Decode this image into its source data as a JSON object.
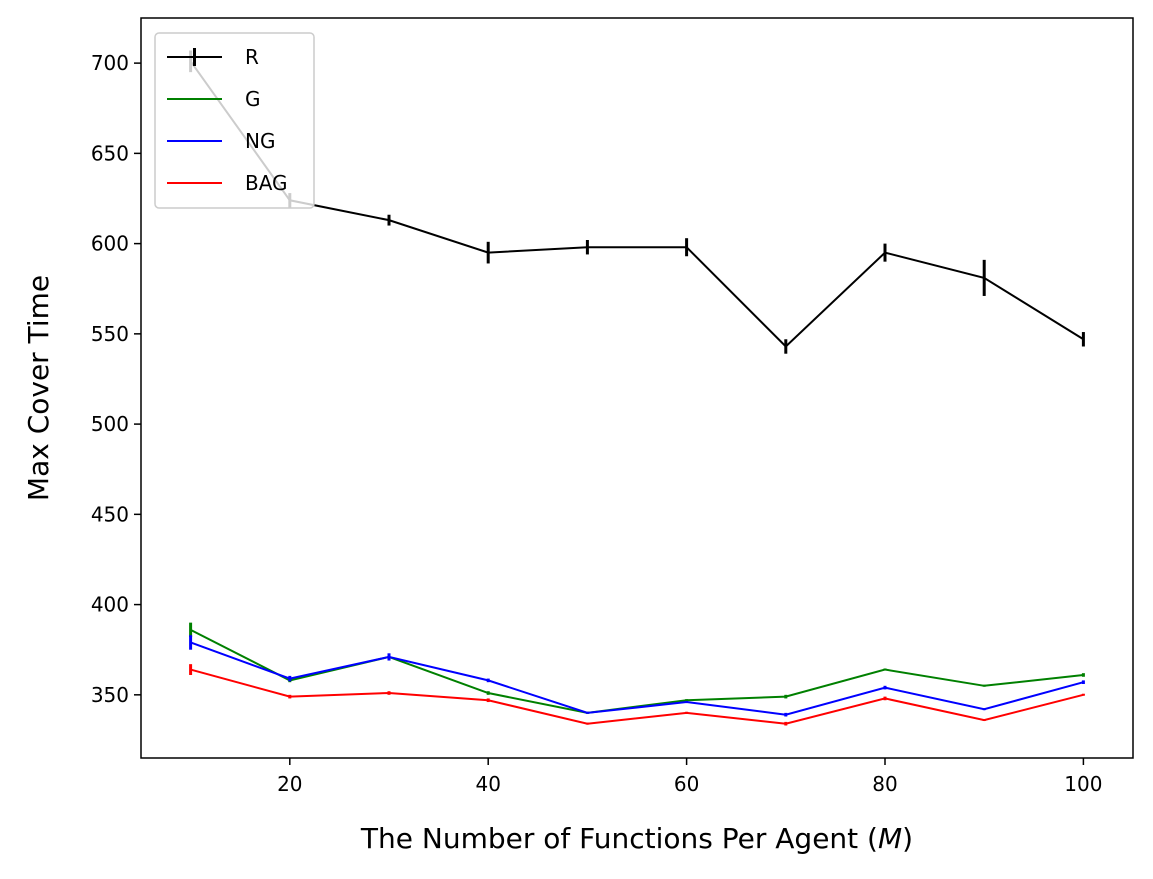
{
  "chart_data": {
    "type": "line",
    "title": "",
    "xlabel": "The Number of Functions Per Agent (M)",
    "xlabel_parts": {
      "prefix": "The Number of Functions Per Agent (",
      "var": "M",
      "suffix": ")"
    },
    "ylabel": "Max Cover Time",
    "xlim": [
      5,
      105
    ],
    "ylim": [
      315,
      725
    ],
    "x_ticks": [
      20,
      40,
      60,
      80,
      100
    ],
    "y_ticks": [
      350,
      400,
      450,
      500,
      550,
      600,
      650,
      700
    ],
    "x": [
      10,
      20,
      30,
      40,
      50,
      60,
      70,
      80,
      90,
      100
    ],
    "grid": false,
    "legend": {
      "placement": "top-left"
    },
    "series": [
      {
        "name": "R",
        "color": "#000000",
        "values": [
          701,
          624,
          613,
          595,
          598,
          598,
          543,
          595,
          581,
          547
        ],
        "errors": [
          6,
          4,
          3,
          6,
          4,
          5,
          4,
          5,
          10,
          4
        ]
      },
      {
        "name": "G",
        "color": "#008000",
        "values": [
          386,
          358,
          371,
          351,
          340,
          347,
          349,
          364,
          355,
          361
        ],
        "errors": [
          4,
          1,
          1,
          1,
          0.5,
          0.5,
          1,
          0.5,
          0.5,
          1
        ]
      },
      {
        "name": "NG",
        "color": "#0000ff",
        "values": [
          379,
          359,
          371,
          358,
          340,
          346,
          339,
          354,
          342,
          357
        ],
        "errors": [
          4,
          1.5,
          2,
          1,
          0.5,
          0.5,
          1,
          1,
          0.5,
          1
        ]
      },
      {
        "name": "BAG",
        "color": "#ff0000",
        "values": [
          364,
          349,
          351,
          347,
          334,
          340,
          334,
          348,
          336,
          350
        ],
        "errors": [
          3,
          1,
          1,
          1,
          0.5,
          0.5,
          1,
          1,
          0.5,
          0.5
        ]
      }
    ]
  }
}
